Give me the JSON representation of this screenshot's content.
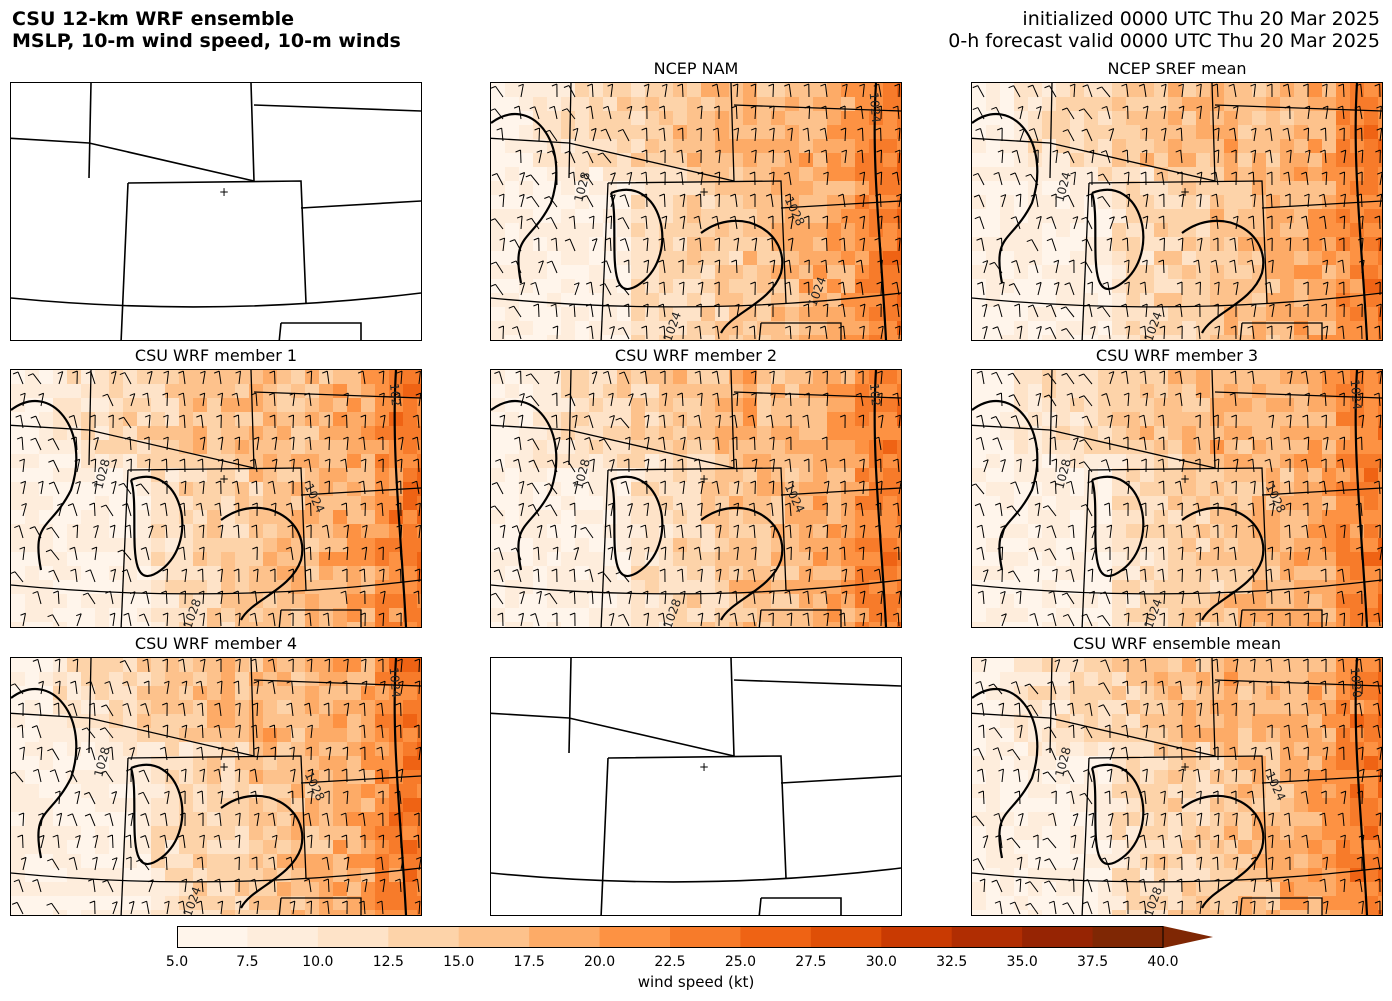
{
  "header": {
    "title_line1": "CSU 12-km WRF ensemble",
    "title_line2": "MSLP, 10-m wind speed, 10-m winds",
    "init_line": "initialized 0000 UTC Thu 20 Mar 2025",
    "valid_line": "0-h forecast valid 0000 UTC Thu 20 Mar 2025"
  },
  "panels": [
    {
      "title": "",
      "empty": true
    },
    {
      "title": "NCEP NAM",
      "empty": false,
      "labels": [
        "1028",
        "1024",
        "1028",
        "1024",
        "1024"
      ]
    },
    {
      "title": "NCEP SREF mean",
      "empty": false,
      "labels": [
        "1024",
        "1024"
      ]
    },
    {
      "title": "CSU WRF member 1",
      "empty": false,
      "labels": [
        "1028",
        "1028",
        "1024",
        "102"
      ]
    },
    {
      "title": "CSU WRF member 2",
      "empty": false,
      "labels": [
        "1028",
        "1028",
        "1024",
        "102"
      ]
    },
    {
      "title": "CSU WRF member 3",
      "empty": false,
      "labels": [
        "1028",
        "1024",
        "1028",
        "1024"
      ]
    },
    {
      "title": "CSU WRF member 4",
      "empty": false,
      "labels": [
        "1028",
        "1024",
        "1028",
        "1024"
      ]
    },
    {
      "title": "",
      "empty": true
    },
    {
      "title": "CSU WRF ensemble mean",
      "empty": false,
      "labels": [
        "1028",
        "1028",
        "1024",
        "1020"
      ]
    }
  ],
  "colorbar": {
    "label": "wind speed (kt)",
    "ticks": [
      "5.0",
      "7.5",
      "10.0",
      "12.5",
      "15.0",
      "17.5",
      "20.0",
      "22.5",
      "25.0",
      "27.5",
      "30.0",
      "32.5",
      "35.0",
      "37.5",
      "40.0"
    ],
    "colors": [
      "#fff5eb",
      "#feeddc",
      "#fee3c8",
      "#fdd3a9",
      "#fdc28c",
      "#fdab67",
      "#fd9243",
      "#f77b2a",
      "#ef6314",
      "#df4f07",
      "#c93a02",
      "#b02d02",
      "#962403",
      "#7f2704"
    ],
    "extend": "max"
  }
}
